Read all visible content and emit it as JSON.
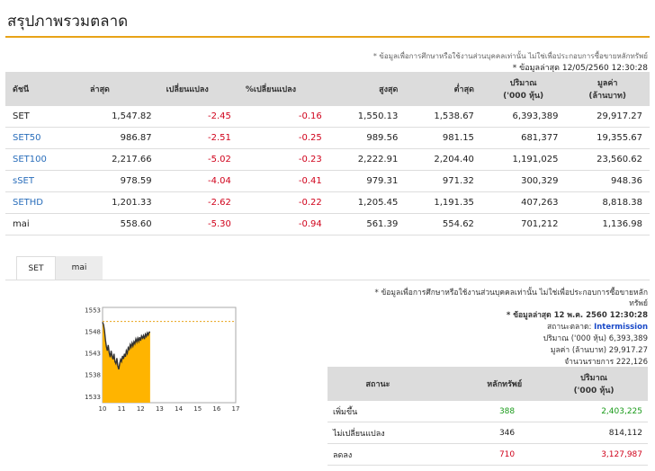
{
  "page_title": "สรุปภาพรวมตลาด",
  "disclaimer": "* ข้อมูลเพื่อการศึกษาหรือใช้งานส่วนบุคคลเท่านั้น ไม่ใช่เพื่อประกอบการซื้อขายหลักทรัพย์",
  "disclaimer_line1": "* ข้อมูลเพื่อการศึกษาหรือใช้งานส่วนบุคคลเท่านั้น ไม่ใช่เพื่อประกอบการซื้อขายหลัก",
  "disclaimer_line2": "ทรัพย์",
  "last_update": "* ข้อมูลล่าสุด 12/05/2560 12:30:28",
  "index_table": {
    "headers": [
      "ดัชนี",
      "ล่าสุด",
      "เปลี่ยนแปลง",
      "%เปลี่ยนแปลง",
      "สูงสุด",
      "ต่ำสุด",
      "ปริมาณ\n('000 หุ้น)",
      "มูลค่า\n(ล้านบาท)"
    ],
    "rows": [
      {
        "name": "SET",
        "last": "1,547.82",
        "chg": "-2.45",
        "pct": "-0.16",
        "high": "1,550.13",
        "low": "1,538.67",
        "vol": "6,393,389",
        "val": "29,917.27"
      },
      {
        "name": "SET50",
        "last": "986.87",
        "chg": "-2.51",
        "pct": "-0.25",
        "high": "989.56",
        "low": "981.15",
        "vol": "681,377",
        "val": "19,355.67"
      },
      {
        "name": "SET100",
        "last": "2,217.66",
        "chg": "-5.02",
        "pct": "-0.23",
        "high": "2,222.91",
        "low": "2,204.40",
        "vol": "1,191,025",
        "val": "23,560.62"
      },
      {
        "name": "sSET",
        "last": "978.59",
        "chg": "-4.04",
        "pct": "-0.41",
        "high": "979.31",
        "low": "971.32",
        "vol": "300,329",
        "val": "948.36"
      },
      {
        "name": "SETHD",
        "last": "1,201.33",
        "chg": "-2.62",
        "pct": "-0.22",
        "high": "1,205.45",
        "low": "1,191.35",
        "vol": "407,263",
        "val": "8,818.38"
      },
      {
        "name": "mai",
        "last": "558.60",
        "chg": "-5.30",
        "pct": "-0.94",
        "high": "561.39",
        "low": "554.62",
        "vol": "701,212",
        "val": "1,136.98"
      }
    ]
  },
  "tabs": [
    "SET",
    "mai"
  ],
  "market_info": {
    "last_update": "* ข้อมูลล่าสุด 12 พ.ค. 2560 12:30:28",
    "status_label": "สถานะตลาด:",
    "status_value": "Intermission",
    "volume_label": "ปริมาณ ('000 หุ้น)",
    "volume_value": "6,393,389",
    "value_label": "มูลค่า (ล้านบาท)",
    "value_value": "29,917.27",
    "trades_label": "จำนวนรายการ",
    "trades_value": "222,126"
  },
  "advance_table": {
    "headers": [
      "สถานะ",
      "หลักทรัพย์",
      "ปริมาณ\n('000 หุ้น)"
    ],
    "rows": [
      {
        "status": "เพิ่มขึ้น",
        "count": "388",
        "vol": "2,403,225"
      },
      {
        "status": "ไม่เปลี่ยนแปลง",
        "count": "346",
        "vol": "814,112"
      },
      {
        "status": "ลดลง",
        "count": "710",
        "vol": "3,127,987"
      }
    ]
  },
  "colors": {
    "accent": "#e8a317",
    "negative": "#d0021b",
    "positive": "#1a9b1a",
    "link": "#2a6ebb",
    "area": "#ffb400"
  },
  "chart_data": {
    "type": "area",
    "title": "",
    "xlabel": "",
    "ylabel": "",
    "x_ticks": [
      "10",
      "11",
      "12",
      "13",
      "14",
      "15",
      "16",
      "17"
    ],
    "y_ticks": [
      "1553",
      "1548",
      "1543",
      "1538",
      "1533"
    ],
    "xlim": [
      10,
      17
    ],
    "ylim": [
      1531.5,
      1553.5
    ],
    "reference_line": 1550.27,
    "x": [
      10.0,
      10.05,
      10.1,
      10.15,
      10.2,
      10.25,
      10.3,
      10.35,
      10.4,
      10.45,
      10.5,
      10.55,
      10.6,
      10.65,
      10.7,
      10.75,
      10.8,
      10.85,
      10.9,
      10.95,
      11.0,
      11.05,
      11.1,
      11.15,
      11.2,
      11.25,
      11.3,
      11.35,
      11.4,
      11.45,
      11.5,
      11.55,
      11.6,
      11.65,
      11.7,
      11.75,
      11.8,
      11.85,
      11.9,
      11.95,
      12.0,
      12.05,
      12.1,
      12.15,
      12.2,
      12.25,
      12.3,
      12.35,
      12.4,
      12.45,
      12.5
    ],
    "values": [
      1550.1,
      1549.5,
      1548.2,
      1546.0,
      1544.5,
      1543.5,
      1544.8,
      1543.0,
      1542.0,
      1543.5,
      1542.2,
      1541.5,
      1542.8,
      1541.0,
      1540.5,
      1541.8,
      1540.0,
      1539.2,
      1540.5,
      1541.5,
      1541.0,
      1542.3,
      1541.6,
      1542.8,
      1542.1,
      1543.5,
      1542.9,
      1544.2,
      1543.8,
      1544.9,
      1544.3,
      1545.3,
      1544.6,
      1545.6,
      1545.1,
      1546.2,
      1545.5,
      1546.4,
      1545.7,
      1546.6,
      1545.8,
      1546.9,
      1546.4,
      1547.0,
      1546.2,
      1547.3,
      1546.8,
      1547.6,
      1547.1,
      1547.8,
      1547.8
    ]
  }
}
